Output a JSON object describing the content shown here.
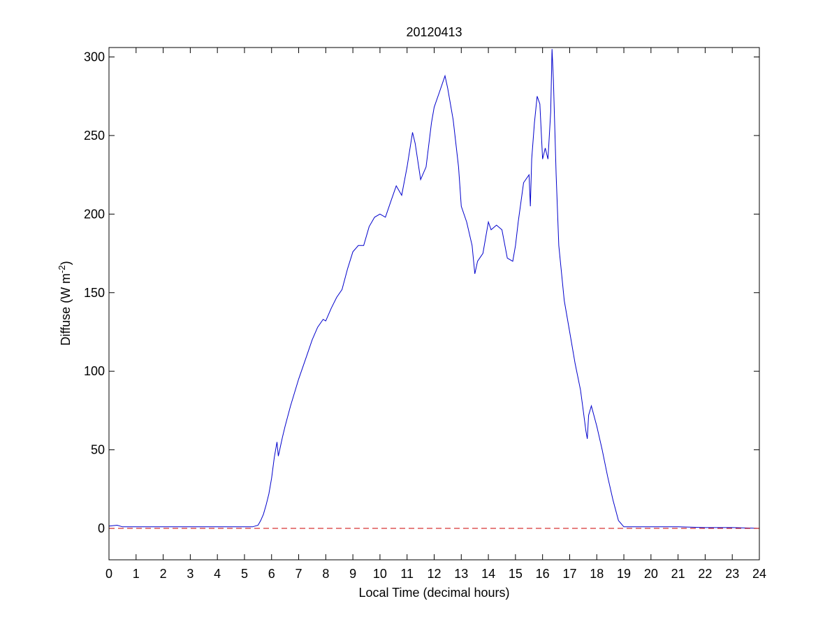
{
  "chart_data": {
    "type": "line",
    "title": "20120413",
    "xlabel": "Local Time (decimal hours)",
    "ylabel": {
      "prefix": "Diffuse (W m",
      "sup": "-2",
      "suffix": ")"
    },
    "xlim": [
      0,
      24
    ],
    "ylim": [
      -20,
      306
    ],
    "xticks": [
      0,
      1,
      2,
      3,
      4,
      5,
      6,
      7,
      8,
      9,
      10,
      11,
      12,
      13,
      14,
      15,
      16,
      17,
      18,
      19,
      20,
      21,
      22,
      23,
      24
    ],
    "yticks": [
      0,
      50,
      100,
      150,
      200,
      250,
      300
    ],
    "grid": false,
    "series": [
      {
        "color": "#0000cc",
        "style": "solid",
        "x": [
          0,
          0.3,
          0.5,
          1,
          2,
          3,
          4,
          4.5,
          5,
          5.3,
          5.5,
          5.6,
          5.7,
          5.8,
          5.9,
          6.0,
          6.1,
          6.2,
          6.25,
          6.3,
          6.4,
          6.5,
          6.7,
          7.0,
          7.3,
          7.5,
          7.7,
          7.9,
          8.0,
          8.2,
          8.4,
          8.6,
          8.8,
          9.0,
          9.2,
          9.4,
          9.6,
          9.8,
          10.0,
          10.2,
          10.4,
          10.6,
          10.8,
          11.0,
          11.2,
          11.3,
          11.5,
          11.7,
          11.9,
          12.0,
          12.2,
          12.4,
          12.5,
          12.7,
          12.9,
          13.0,
          13.2,
          13.4,
          13.5,
          13.6,
          13.8,
          14.0,
          14.1,
          14.3,
          14.5,
          14.7,
          14.9,
          15.0,
          15.1,
          15.3,
          15.5,
          15.55,
          15.6,
          15.7,
          15.8,
          15.9,
          16.0,
          16.1,
          16.2,
          16.3,
          16.35,
          16.4,
          16.5,
          16.6,
          16.8,
          17.0,
          17.2,
          17.4,
          17.5,
          17.6,
          17.65,
          17.7,
          17.8,
          18.0,
          18.2,
          18.4,
          18.6,
          18.8,
          19.0,
          19.2,
          20,
          21,
          22,
          23,
          24
        ],
        "y": [
          1.5,
          2,
          1,
          1,
          1,
          1,
          1,
          1,
          1,
          1,
          2,
          5,
          9,
          15,
          22,
          32,
          45,
          55,
          46,
          50,
          58,
          65,
          78,
          95,
          110,
          120,
          128,
          133,
          132,
          140,
          147,
          152,
          165,
          176,
          180,
          180,
          192,
          198,
          200,
          198,
          208,
          218,
          212,
          230,
          252,
          245,
          222,
          230,
          258,
          268,
          278,
          288,
          280,
          260,
          230,
          205,
          195,
          180,
          162,
          170,
          175,
          195,
          190,
          193,
          190,
          172,
          170,
          180,
          195,
          220,
          225,
          205,
          235,
          258,
          275,
          270,
          235,
          242,
          235,
          265,
          305,
          285,
          225,
          180,
          145,
          125,
          105,
          88,
          75,
          62,
          57,
          72,
          78,
          65,
          50,
          33,
          18,
          5,
          1,
          1,
          1,
          1,
          0.5,
          0.5,
          0
        ]
      },
      {
        "color": "#cc0000",
        "style": "dashed",
        "x": [
          0,
          24
        ],
        "y": [
          0,
          0
        ]
      }
    ]
  }
}
